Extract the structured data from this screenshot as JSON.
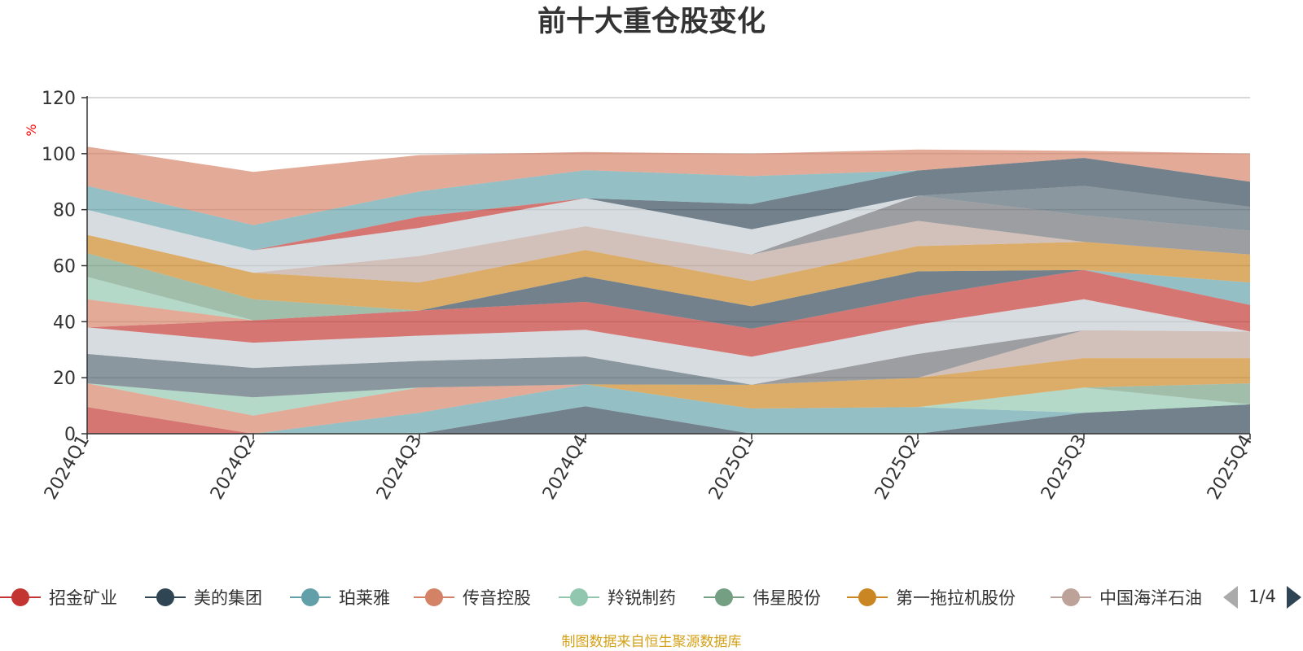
{
  "chart_data": {
    "type": "area",
    "title": "前十大重仓股变化",
    "ylabel": "%",
    "ylim": [
      0,
      120
    ],
    "yticks": [
      0,
      20,
      40,
      60,
      80,
      100,
      120
    ],
    "categories": [
      "2024Q1",
      "2024Q2",
      "2024Q3",
      "2024Q4",
      "2025Q1",
      "2025Q2",
      "2025Q3",
      "2025Q4"
    ],
    "grid": true,
    "legend_position": "bottom",
    "series": [
      {
        "name": "招金矿业",
        "legend_color": "#c23531",
        "values": [
          9.5,
          0,
          0,
          0,
          0,
          0,
          0,
          0
        ]
      },
      {
        "name": "美的集团",
        "legend_color": "#2f4554",
        "values": [
          0,
          0,
          0,
          9.8,
          0,
          0,
          7.5,
          10.5
        ]
      },
      {
        "name": "珀莱雅",
        "legend_color": "#61a0a8",
        "values": [
          0,
          0,
          7.5,
          7.8,
          9,
          9.5,
          0,
          0
        ]
      },
      {
        "name": "传音控股",
        "legend_color": "#d48265",
        "values": [
          8.5,
          6.5,
          9,
          0,
          0,
          0,
          0,
          0
        ]
      },
      {
        "name": "羚锐制药",
        "legend_color": "#91c7ae",
        "values": [
          0,
          6.5,
          0,
          0,
          0,
          0,
          9,
          0
        ]
      },
      {
        "name": "伟星股份",
        "legend_color": "#749f83",
        "values": [
          0,
          0,
          0,
          0,
          0,
          0,
          0,
          7.5
        ]
      },
      {
        "name": "第一拖拉机股份",
        "legend_color": "#ca8622",
        "values": [
          0,
          0,
          0,
          0,
          8.5,
          10.5,
          10.5,
          9
        ]
      },
      {
        "name": "中国海洋石油",
        "legend_color": "#bda29a",
        "values": [
          0,
          0,
          0,
          0,
          0,
          0,
          10,
          9.5
        ]
      },
      {
        "name": "",
        "legend_color": "#6e7074",
        "values": [
          0,
          0,
          0,
          0,
          0,
          8.5,
          0,
          0
        ]
      },
      {
        "name": "",
        "legend_color": "#546570",
        "values": [
          10.5,
          10.5,
          9.5,
          10,
          0,
          0,
          0,
          0
        ]
      },
      {
        "name": "",
        "legend_color": "#c4ccd3",
        "values": [
          9.5,
          9,
          9,
          9.5,
          10,
          10.5,
          11,
          0
        ]
      },
      {
        "name": "",
        "legend_color": "#c23531",
        "values": [
          0,
          8,
          9,
          10,
          10,
          10,
          10.5,
          9.5
        ]
      },
      {
        "name": "",
        "legend_color": "#2f4554",
        "values": [
          0,
          0,
          0,
          9,
          8,
          9,
          0,
          0
        ]
      },
      {
        "name": "",
        "legend_color": "#61a0a8",
        "values": [
          0,
          0,
          0,
          0,
          0,
          0,
          0,
          8
        ]
      },
      {
        "name": "",
        "legend_color": "#d48265",
        "values": [
          10,
          0,
          0,
          0,
          0,
          0,
          0,
          0
        ]
      },
      {
        "name": "",
        "legend_color": "#91c7ae",
        "values": [
          8,
          0,
          0,
          0,
          0,
          0,
          0,
          0
        ]
      },
      {
        "name": "",
        "legend_color": "#749f83",
        "values": [
          8.5,
          7.5,
          0,
          0,
          0,
          0,
          0,
          0
        ]
      },
      {
        "name": "",
        "legend_color": "#ca8622",
        "values": [
          6.5,
          9.5,
          10,
          9.5,
          9,
          9,
          10,
          10
        ]
      },
      {
        "name": "",
        "legend_color": "#bda29a",
        "values": [
          0,
          0,
          9.5,
          8.5,
          9.5,
          9,
          0,
          0
        ]
      },
      {
        "name": "",
        "legend_color": "#6e7074",
        "values": [
          0,
          0,
          0,
          0,
          0,
          9,
          9.5,
          8.5
        ]
      },
      {
        "name": "",
        "legend_color": "#546570",
        "values": [
          0,
          0,
          0,
          0,
          0,
          0,
          10.5,
          8.5
        ]
      },
      {
        "name": "",
        "legend_color": "#c4ccd3",
        "values": [
          9,
          8,
          10,
          10,
          9,
          0,
          0,
          0
        ]
      },
      {
        "name": "",
        "legend_color": "#c23531",
        "values": [
          0,
          0,
          4,
          0,
          0,
          0,
          0,
          0
        ]
      },
      {
        "name": "",
        "legend_color": "#2f4554",
        "values": [
          0,
          0,
          0,
          0,
          9,
          9,
          10,
          9
        ]
      },
      {
        "name": "",
        "legend_color": "#61a0a8",
        "values": [
          8.5,
          9,
          9,
          10,
          10,
          0,
          0,
          0
        ]
      },
      {
        "name": "",
        "legend_color": "#d48265",
        "values": [
          14,
          19,
          13,
          6.5,
          8,
          7.5,
          2.5,
          10
        ]
      }
    ]
  },
  "legend": {
    "items": [
      {
        "label": "招金矿业",
        "color": "#c23531"
      },
      {
        "label": "美的集团",
        "color": "#2f4554"
      },
      {
        "label": "珀莱雅",
        "color": "#61a0a8"
      },
      {
        "label": "传音控股",
        "color": "#d48265"
      },
      {
        "label": "羚锐制药",
        "color": "#91c7ae"
      },
      {
        "label": "伟星股份",
        "color": "#749f83"
      },
      {
        "label": "第一拖拉机股份",
        "color": "#ca8622"
      },
      {
        "label": "中国海洋石油",
        "color": "#bda29a"
      }
    ],
    "page_indicator": "1/4",
    "prev_icon": "triangle-left-icon",
    "next_icon": "triangle-right-icon"
  },
  "footer": {
    "source": "制图数据来自恒生聚源数据库"
  }
}
